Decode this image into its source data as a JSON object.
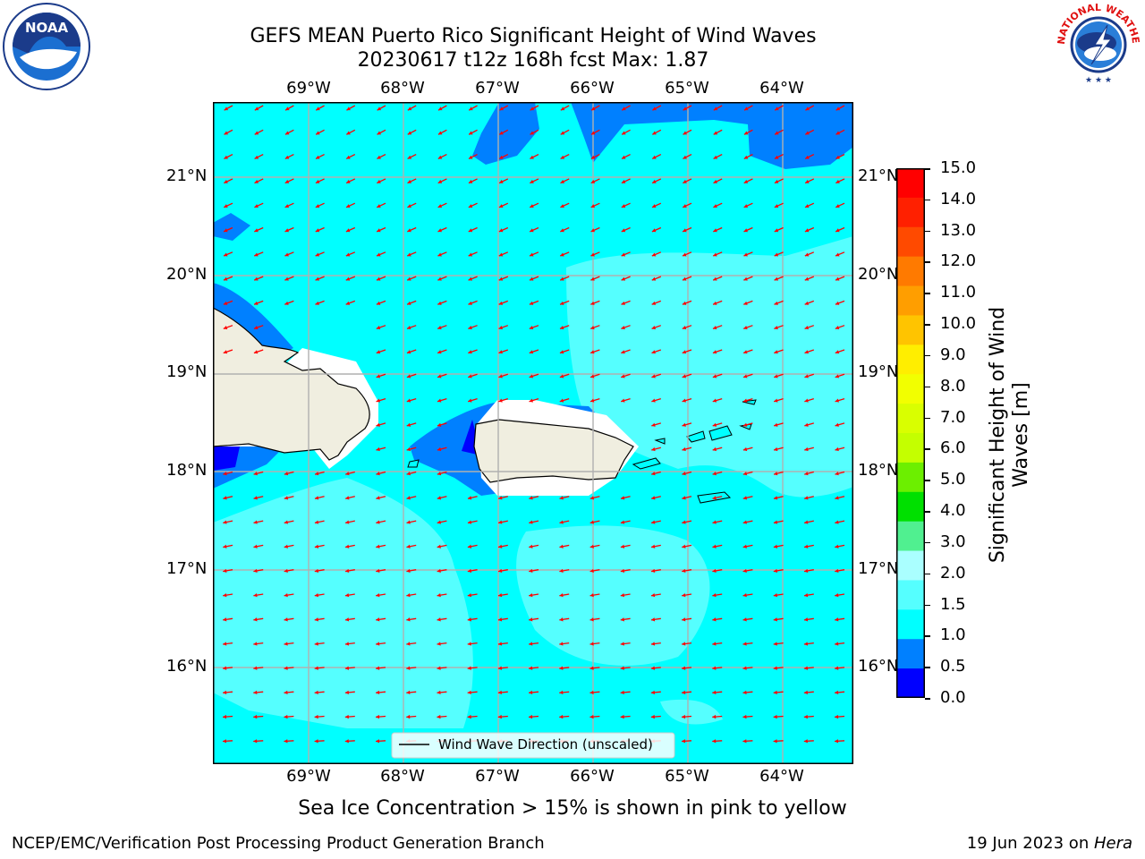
{
  "header": {
    "title": "GEFS MEAN Puerto Rico Significant Height of Wind Waves",
    "subtitle": "20230617 t12z 168h fcst   Max: 1.87"
  },
  "logos": {
    "noaa_text": "NOAA",
    "nws_text": "NATIONAL WEATHER SERVICE"
  },
  "map": {
    "lon_labels": [
      "69°W",
      "68°W",
      "67°W",
      "66°W",
      "65°W",
      "64°W"
    ],
    "lat_labels": [
      "21°N",
      "20°N",
      "19°N",
      "18°N",
      "17°N",
      "16°N"
    ],
    "legend": "Wind Wave Direction (unscaled)"
  },
  "colorbar": {
    "label_line1": "Significant Height of Wind",
    "label_line2": "Waves [m]",
    "ticks": [
      "15.0",
      "14.0",
      "13.0",
      "12.0",
      "11.0",
      "10.0",
      "9.0",
      "8.0",
      "7.0",
      "6.0",
      "5.0",
      "4.0",
      "3.0",
      "2.0",
      "1.5",
      "1.0",
      "0.5",
      "0.0"
    ],
    "colors": [
      "#ff0000",
      "#ff2000",
      "#ff4a00",
      "#ff7a00",
      "#ff9e00",
      "#ffc400",
      "#ffee00",
      "#f2ff00",
      "#d9ff00",
      "#c4ff00",
      "#6cef00",
      "#00e000",
      "#50f090",
      "#aaffff",
      "#55ffff",
      "#00ffff",
      "#0080ff",
      "#0000ff"
    ]
  },
  "note": "Sea Ice Concentration > 15% is shown in pink to yellow",
  "footer": {
    "left": "NCEP/EMC/Verification Post Processing Product Generation Branch",
    "right_prefix": "19 Jun 2023 on ",
    "right_host": "Hera"
  }
}
